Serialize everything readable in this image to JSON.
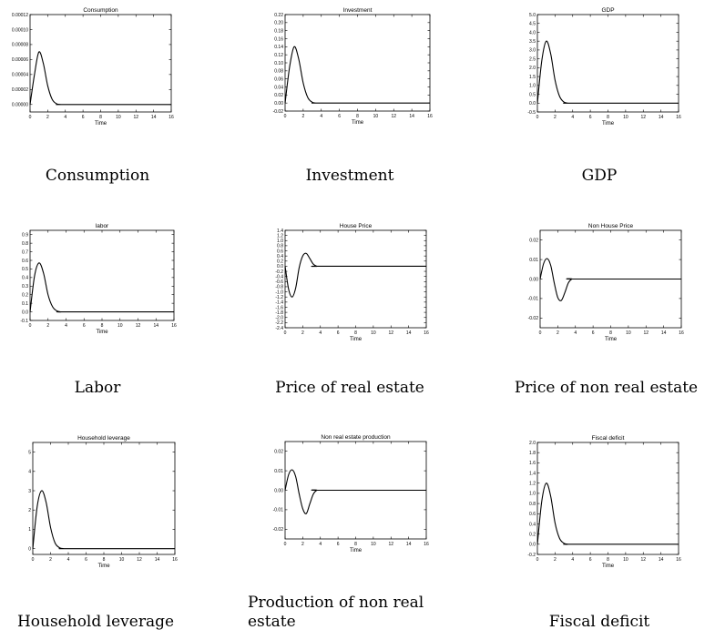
{
  "chart_data": [
    {
      "type": "line",
      "title": "Consumption",
      "xlabel": "Time",
      "caption": "Consumption",
      "xlim": [
        0,
        16
      ],
      "ylim": [
        -1e-05,
        0.00012
      ],
      "xticks": [
        0,
        2,
        4,
        6,
        8,
        10,
        12,
        14,
        16
      ],
      "yticks": [
        0.0,
        2e-05,
        4e-05,
        6e-05,
        8e-05,
        0.0001,
        0.00012
      ],
      "ytick_labels": [
        "0.00000",
        "0.00002",
        "0.00004",
        "0.00006",
        "0.00008",
        "0.00010",
        "0.00012"
      ],
      "series": [
        {
          "x": [
            0,
            0.5,
            1.0,
            1.5,
            2.0,
            2.5,
            3.0,
            3.5,
            4,
            16
          ],
          "values": [
            0,
            4e-05,
            7e-05,
            5.5e-05,
            2.5e-05,
            7e-06,
            1e-06,
            0,
            0,
            0
          ]
        }
      ]
    },
    {
      "type": "line",
      "title": "Investment",
      "xlabel": "Time",
      "caption": "Investment",
      "xlim": [
        0,
        16
      ],
      "ylim": [
        -0.02,
        0.22
      ],
      "xticks": [
        0,
        2,
        4,
        6,
        8,
        10,
        12,
        14,
        16
      ],
      "yticks": [
        -0.02,
        0.0,
        0.02,
        0.04,
        0.06,
        0.08,
        0.1,
        0.12,
        0.14,
        0.16,
        0.18,
        0.2,
        0.22
      ],
      "ytick_labels": [
        "-0.02",
        "0.00",
        "0.02",
        "0.04",
        "0.06",
        "0.08",
        "0.10",
        "0.12",
        "0.14",
        "0.16",
        "0.18",
        "0.20",
        "0.22"
      ],
      "series": [
        {
          "x": [
            0,
            0.5,
            1.0,
            1.5,
            2.0,
            2.5,
            3.0,
            3.5,
            4,
            16
          ],
          "values": [
            0,
            0.09,
            0.14,
            0.11,
            0.05,
            0.014,
            0.002,
            0,
            0,
            0
          ]
        }
      ]
    },
    {
      "type": "line",
      "title": "GDP",
      "xlabel": "Time",
      "caption": "GDP",
      "xlim": [
        0,
        16
      ],
      "ylim": [
        -0.5,
        5.0
      ],
      "xticks": [
        0,
        2,
        4,
        6,
        8,
        10,
        12,
        14,
        16
      ],
      "yticks": [
        -0.5,
        0.0,
        0.5,
        1.0,
        1.5,
        2.0,
        2.5,
        3.0,
        3.5,
        4.0,
        4.5,
        5.0
      ],
      "ytick_labels": [
        "-0.5",
        "0.0",
        "0.5",
        "1.0",
        "1.5",
        "2.0",
        "2.5",
        "3.0",
        "3.5",
        "4.0",
        "4.5",
        "5.0"
      ],
      "series": [
        {
          "x": [
            0,
            0.5,
            1.0,
            1.5,
            2.0,
            2.5,
            3.0,
            3.5,
            4,
            16
          ],
          "values": [
            0,
            2.4,
            3.5,
            2.8,
            1.3,
            0.4,
            0.06,
            0,
            0,
            0
          ]
        }
      ]
    },
    {
      "type": "line",
      "title": "labor",
      "xlabel": "Time",
      "caption": "Labor",
      "xlim": [
        0,
        16
      ],
      "ylim": [
        -0.1,
        0.95
      ],
      "xticks": [
        0,
        2,
        4,
        6,
        8,
        10,
        12,
        14,
        16
      ],
      "yticks": [
        -0.1,
        0.0,
        0.1,
        0.2,
        0.3,
        0.4,
        0.5,
        0.6,
        0.7,
        0.8,
        0.9
      ],
      "ytick_labels": [
        "-0.1",
        "0.0",
        "0.1",
        "0.2",
        "0.3",
        "0.4",
        "0.5",
        "0.6",
        "0.7",
        "0.8",
        "0.9"
      ],
      "series": [
        {
          "x": [
            0,
            0.5,
            1.0,
            1.5,
            2.0,
            2.5,
            3.0,
            3.5,
            4,
            16
          ],
          "values": [
            0,
            0.42,
            0.57,
            0.45,
            0.2,
            0.06,
            0.01,
            0,
            0,
            0
          ]
        }
      ]
    },
    {
      "type": "line",
      "title": "House Price",
      "xlabel": "Time",
      "caption": "Price of real estate",
      "xlim": [
        0,
        16
      ],
      "ylim": [
        -2.4,
        1.4
      ],
      "xticks": [
        0,
        2,
        4,
        6,
        8,
        10,
        12,
        14,
        16
      ],
      "yticks": [
        -2.4,
        -2.2,
        -2.0,
        -1.8,
        -1.6,
        -1.4,
        -1.2,
        -1.0,
        -0.8,
        -0.6,
        -0.4,
        -0.2,
        0.0,
        0.2,
        0.4,
        0.6,
        0.8,
        1.0,
        1.2,
        1.4
      ],
      "ytick_labels": [
        "-2.4",
        "-2.2",
        "-2.0",
        "-1.8",
        "-1.6",
        "-1.4",
        "-1.2",
        "-1.0",
        "-0.8",
        "-0.6",
        "-0.4",
        "-0.2",
        "0.0",
        "0.2",
        "0.4",
        "0.6",
        "0.8",
        "1.0",
        "1.2",
        "1.4"
      ],
      "series": [
        {
          "x": [
            0,
            0.4,
            0.8,
            1.2,
            1.6,
            2.0,
            2.4,
            2.8,
            3.2,
            3.6,
            4.0,
            16
          ],
          "values": [
            0,
            -0.9,
            -1.2,
            -0.85,
            -0.05,
            0.4,
            0.5,
            0.3,
            0.08,
            0,
            0,
            0
          ]
        }
      ]
    },
    {
      "type": "line",
      "title": "Non House Price",
      "xlabel": "Time",
      "caption": "Price of non real estate",
      "xlim": [
        0,
        16
      ],
      "ylim": [
        -0.025,
        0.025
      ],
      "xticks": [
        0,
        2,
        4,
        6,
        8,
        10,
        12,
        14,
        16
      ],
      "yticks": [
        -0.02,
        -0.01,
        0.0,
        0.01,
        0.02
      ],
      "ytick_labels": [
        "-0.02",
        "-0.01",
        "0.00",
        "0.01",
        "0.02"
      ],
      "series": [
        {
          "x": [
            0,
            0.4,
            0.8,
            1.2,
            1.6,
            2.0,
            2.4,
            2.8,
            3.2,
            3.6,
            4.0,
            16
          ],
          "values": [
            0,
            0.008,
            0.0105,
            0.007,
            -0.002,
            -0.0095,
            -0.011,
            -0.007,
            -0.002,
            0,
            0,
            0
          ]
        }
      ]
    },
    {
      "type": "line",
      "title": "Household leverage",
      "xlabel": "Time",
      "caption": "Household leverage",
      "xlim": [
        0,
        16
      ],
      "ylim": [
        -0.3,
        5.5
      ],
      "xticks": [
        0,
        2,
        4,
        6,
        8,
        10,
        12,
        14,
        16
      ],
      "yticks": [
        0,
        1,
        2,
        3,
        4,
        5
      ],
      "ytick_labels": [
        "0",
        "1",
        "2",
        "3",
        "4",
        "5"
      ],
      "series": [
        {
          "x": [
            0,
            0.5,
            1.0,
            1.5,
            2.0,
            2.5,
            3.0,
            3.5,
            4,
            16
          ],
          "values": [
            0,
            2.2,
            3.0,
            2.4,
            1.1,
            0.3,
            0.05,
            0,
            0,
            0
          ]
        }
      ]
    },
    {
      "type": "line",
      "title": "Non real estate production",
      "xlabel": "Time",
      "caption": "Production of non real estate",
      "xlim": [
        0,
        16
      ],
      "ylim": [
        -0.025,
        0.025
      ],
      "xticks": [
        0,
        2,
        4,
        6,
        8,
        10,
        12,
        14,
        16
      ],
      "yticks": [
        -0.02,
        -0.01,
        0.0,
        0.01,
        0.02
      ],
      "ytick_labels": [
        "-0.02",
        "-0.01",
        "0.00",
        "0.01",
        "0.02"
      ],
      "series": [
        {
          "x": [
            0,
            0.4,
            0.8,
            1.2,
            1.6,
            2.0,
            2.4,
            2.8,
            3.2,
            3.6,
            4.0,
            16
          ],
          "values": [
            0,
            0.008,
            0.0105,
            0.007,
            -0.002,
            -0.0095,
            -0.012,
            -0.007,
            -0.002,
            0,
            0,
            0
          ]
        }
      ]
    },
    {
      "type": "line",
      "title": "Fiscal deficit",
      "xlabel": "Time",
      "caption": "Fiscal deficit",
      "xlim": [
        0,
        16
      ],
      "ylim": [
        -0.2,
        2.0
      ],
      "xticks": [
        0,
        2,
        4,
        6,
        8,
        10,
        12,
        14,
        16
      ],
      "yticks": [
        -0.2,
        0.0,
        0.2,
        0.4,
        0.6,
        0.8,
        1.0,
        1.2,
        1.4,
        1.6,
        1.8,
        2.0
      ],
      "ytick_labels": [
        "-0.2",
        "0.0",
        "0.2",
        "0.4",
        "0.6",
        "0.8",
        "1.0",
        "1.2",
        "1.4",
        "1.6",
        "1.8",
        "2.0"
      ],
      "series": [
        {
          "x": [
            0,
            0.5,
            1.0,
            1.5,
            2.0,
            2.5,
            3.0,
            3.5,
            4,
            16
          ],
          "values": [
            0,
            0.85,
            1.2,
            0.95,
            0.42,
            0.12,
            0.02,
            0,
            0,
            0
          ]
        }
      ]
    }
  ]
}
